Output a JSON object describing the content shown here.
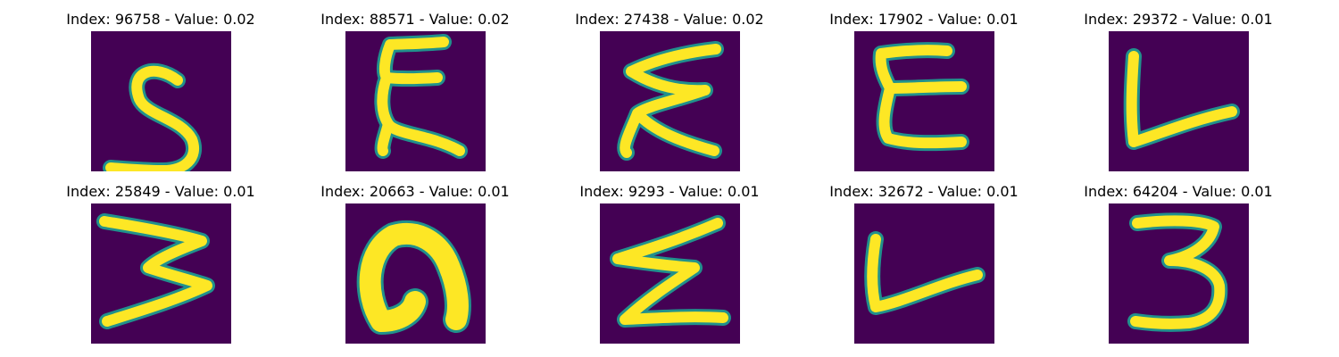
{
  "colors": {
    "background": "#440154",
    "stroke_core": "#fde725",
    "stroke_edge": "#21918c"
  },
  "panels": [
    {
      "title": "Index: 96758 - Value: 0.02",
      "glyph": "S"
    },
    {
      "title": "Index: 88571 - Value: 0.02",
      "glyph": "Σ-like"
    },
    {
      "title": "Index: 27438 - Value: 0.02",
      "glyph": "Σ-like"
    },
    {
      "title": "Index: 17902 - Value: 0.01",
      "glyph": "Σ-like"
    },
    {
      "title": "Index: 29372 - Value: 0.01",
      "glyph": "L-like"
    },
    {
      "title": "Index: 25849 - Value: 0.01",
      "glyph": "Σ-like"
    },
    {
      "title": "Index: 20663 - Value: 0.01",
      "glyph": "n"
    },
    {
      "title": "Index: 9293 - Value: 0.01",
      "glyph": "Z-like"
    },
    {
      "title": "Index: 32672 - Value: 0.01",
      "glyph": "L-like"
    },
    {
      "title": "Index: 64204 - Value: 0.01",
      "glyph": "3"
    }
  ]
}
